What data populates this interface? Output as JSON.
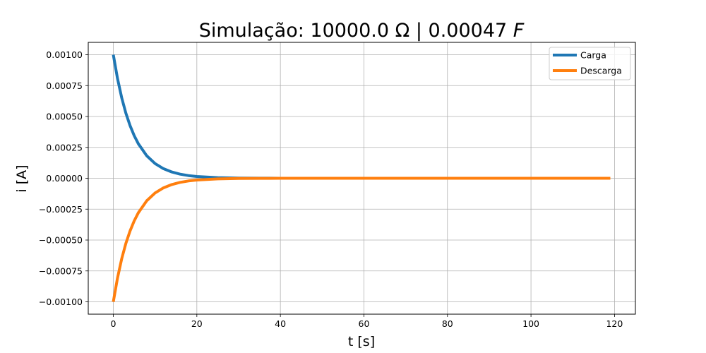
{
  "chart_data": {
    "type": "line",
    "title_main": "Simulação: 10000.0 Ω | 0.00047 ",
    "title_italic": "F",
    "xlabel": "t [s]",
    "ylabel": "i [A]",
    "xlim": [
      -6,
      125
    ],
    "ylim": [
      -0.0011,
      0.0011
    ],
    "grid": true,
    "legend_position": "top-right",
    "x_tick_values": [
      0,
      20,
      40,
      60,
      80,
      100,
      120
    ],
    "x_tick_labels": [
      "0",
      "20",
      "40",
      "60",
      "80",
      "100",
      "120"
    ],
    "y_tick_values": [
      0.001,
      0.00075,
      0.0005,
      0.00025,
      0.0,
      -0.00025,
      -0.0005,
      -0.00075,
      -0.001
    ],
    "y_tick_labels": [
      "0.00100",
      "0.00075",
      "0.00050",
      "0.00025",
      "0.00000",
      "−0.00025",
      "−0.00050",
      "−0.00075",
      "−0.00100"
    ],
    "x_range": [
      0,
      119
    ],
    "series": [
      {
        "name": "Carga",
        "color": "#1f77b4",
        "x": [
          0,
          1,
          2,
          3,
          4,
          5,
          6,
          8,
          10,
          12,
          14,
          16,
          18,
          20,
          25,
          30,
          35,
          40,
          50,
          60,
          80,
          100,
          119
        ],
        "y": [
          0.001,
          0.000808,
          0.000653,
          0.000528,
          0.000427,
          0.000345,
          0.000279,
          0.000182,
          0.000119,
          7.77e-05,
          5.08e-05,
          3.32e-05,
          2.17e-05,
          1.42e-05,
          4.9e-06,
          1.7e-06,
          6e-07,
          2e-07,
          0.0,
          0.0,
          0.0,
          0.0,
          0.0
        ]
      },
      {
        "name": "Descarga",
        "color": "#ff7f0e",
        "x": [
          0,
          1,
          2,
          3,
          4,
          5,
          6,
          8,
          10,
          12,
          14,
          16,
          18,
          20,
          25,
          30,
          35,
          40,
          50,
          60,
          80,
          100,
          119
        ],
        "y": [
          -0.001,
          -0.000808,
          -0.000653,
          -0.000528,
          -0.000427,
          -0.000345,
          -0.000279,
          -0.000182,
          -0.000119,
          -7.77e-05,
          -5.08e-05,
          -3.32e-05,
          -2.17e-05,
          -1.42e-05,
          -4.9e-06,
          -1.7e-06,
          -6e-07,
          -2e-07,
          0.0,
          0.0,
          0.0,
          0.0,
          0.0
        ]
      }
    ]
  }
}
